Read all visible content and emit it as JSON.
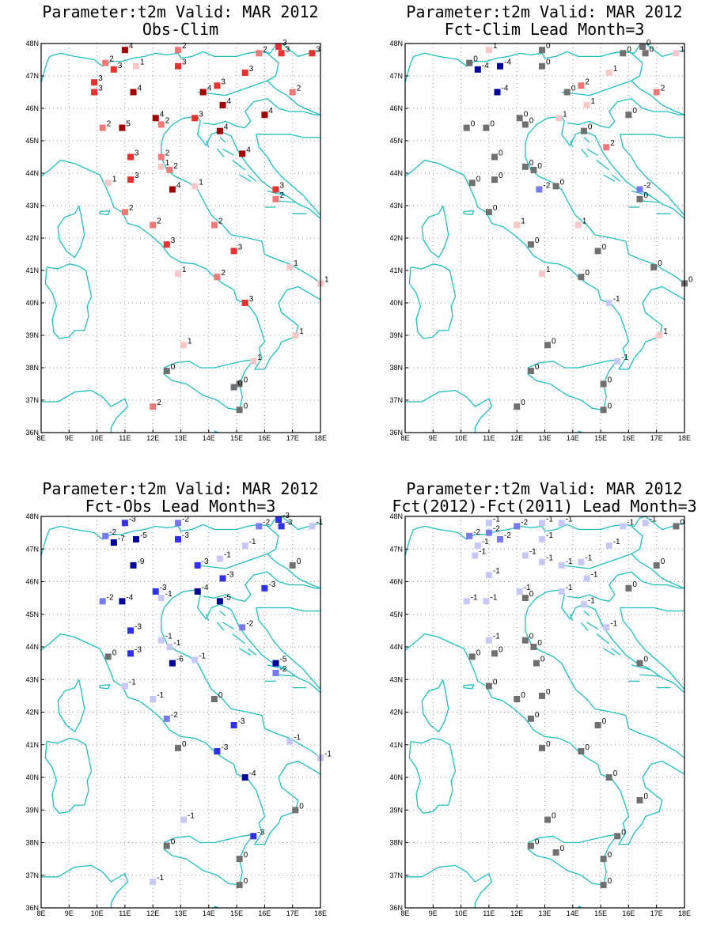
{
  "axes": {
    "lon_ticks": [
      "8E",
      "9E",
      "10E",
      "11E",
      "12E",
      "13E",
      "14E",
      "15E",
      "16E",
      "17E",
      "18E"
    ],
    "lat_ticks": [
      "48N",
      "47N",
      "46N",
      "45N",
      "44N",
      "43N",
      "42N",
      "41N",
      "40N",
      "39N",
      "38N",
      "37N",
      "36N"
    ],
    "lon_range": [
      8,
      18
    ],
    "lat_range": [
      36,
      48
    ]
  },
  "colors": {
    "coastline": "#22bdbd",
    "grid": "#9a9a9a",
    "pos1": "#f8c8c8",
    "pos2": "#f07878",
    "pos3": "#e83030",
    "pos4": "#a00000",
    "neg1": "#c8c8f8",
    "neg2": "#7878f0",
    "neg3": "#3030e8",
    "neg4": "#00009a",
    "zero": "#707070"
  },
  "panels": [
    {
      "title1": "Parameter:t2m Valid: MAR 2012",
      "title2": "Obs-Clim",
      "stations": [
        {
          "lon": 10.3,
          "lat": 47.4,
          "v": "2"
        },
        {
          "lon": 10.6,
          "lat": 47.2,
          "v": "3"
        },
        {
          "lon": 11.0,
          "lat": 47.8,
          "v": "4"
        },
        {
          "lon": 11.4,
          "lat": 47.3,
          "v": "1"
        },
        {
          "lon": 9.9,
          "lat": 46.8,
          "v": "3"
        },
        {
          "lon": 9.9,
          "lat": 46.5,
          "v": "3"
        },
        {
          "lon": 11.3,
          "lat": 46.5,
          "v": "4"
        },
        {
          "lon": 12.9,
          "lat": 47.8,
          "v": "2"
        },
        {
          "lon": 12.9,
          "lat": 47.3,
          "v": "3"
        },
        {
          "lon": 13.8,
          "lat": 46.5,
          "v": "4"
        },
        {
          "lon": 14.3,
          "lat": 46.7,
          "v": "3"
        },
        {
          "lon": 15.3,
          "lat": 47.1,
          "v": "3"
        },
        {
          "lon": 15.8,
          "lat": 47.7,
          "v": "2"
        },
        {
          "lon": 16.5,
          "lat": 47.9,
          "v": "3"
        },
        {
          "lon": 16.6,
          "lat": 47.7,
          "v": "3"
        },
        {
          "lon": 17.7,
          "lat": 47.7,
          "v": "3"
        },
        {
          "lon": 17.0,
          "lat": 46.5,
          "v": "2"
        },
        {
          "lon": 16.0,
          "lat": 45.8,
          "v": "4"
        },
        {
          "lon": 14.5,
          "lat": 46.1,
          "v": "4"
        },
        {
          "lon": 13.5,
          "lat": 45.7,
          "v": "3"
        },
        {
          "lon": 12.1,
          "lat": 45.7,
          "v": "4"
        },
        {
          "lon": 12.3,
          "lat": 45.5,
          "v": "2"
        },
        {
          "lon": 10.2,
          "lat": 45.4,
          "v": "2"
        },
        {
          "lon": 10.9,
          "lat": 45.4,
          "v": "5"
        },
        {
          "lon": 14.4,
          "lat": 45.3,
          "v": "4"
        },
        {
          "lon": 11.2,
          "lat": 44.5,
          "v": "3"
        },
        {
          "lon": 12.3,
          "lat": 44.5,
          "v": "2"
        },
        {
          "lon": 12.3,
          "lat": 44.2,
          "v": "1"
        },
        {
          "lon": 12.6,
          "lat": 44.1,
          "v": "2"
        },
        {
          "lon": 15.2,
          "lat": 44.6,
          "v": "4"
        },
        {
          "lon": 10.4,
          "lat": 43.7,
          "v": "1"
        },
        {
          "lon": 11.2,
          "lat": 43.8,
          "v": "3"
        },
        {
          "lon": 12.7,
          "lat": 43.5,
          "v": "4"
        },
        {
          "lon": 13.5,
          "lat": 43.6,
          "v": "1"
        },
        {
          "lon": 16.4,
          "lat": 43.5,
          "v": "3"
        },
        {
          "lon": 16.4,
          "lat": 43.2,
          "v": "2"
        },
        {
          "lon": 11.0,
          "lat": 42.8,
          "v": "2"
        },
        {
          "lon": 12.0,
          "lat": 42.4,
          "v": "2"
        },
        {
          "lon": 14.2,
          "lat": 42.4,
          "v": "2"
        },
        {
          "lon": 12.5,
          "lat": 41.8,
          "v": "3"
        },
        {
          "lon": 14.9,
          "lat": 41.6,
          "v": "3"
        },
        {
          "lon": 12.9,
          "lat": 40.9,
          "v": "1"
        },
        {
          "lon": 14.3,
          "lat": 40.8,
          "v": "2"
        },
        {
          "lon": 15.3,
          "lat": 40.0,
          "v": "3"
        },
        {
          "lon": 16.9,
          "lat": 41.1,
          "v": "1"
        },
        {
          "lon": 18.0,
          "lat": 40.6,
          "v": "1"
        },
        {
          "lon": 17.1,
          "lat": 39.0,
          "v": "1"
        },
        {
          "lon": 13.1,
          "lat": 38.7,
          "v": "1"
        },
        {
          "lon": 15.6,
          "lat": 38.2,
          "v": "1"
        },
        {
          "lon": 12.5,
          "lat": 37.9,
          "v": "0"
        },
        {
          "lon": 15.1,
          "lat": 37.5,
          "v": "0"
        },
        {
          "lon": 14.9,
          "lat": 37.4,
          "v": "0"
        },
        {
          "lon": 15.1,
          "lat": 36.7,
          "v": "0"
        },
        {
          "lon": 12.0,
          "lat": 36.8,
          "v": "2"
        }
      ]
    },
    {
      "title1": "Parameter:t2m Valid: MAR 2012",
      "title2": "Fct-Clim Lead Month=3",
      "stations": [
        {
          "lon": 10.3,
          "lat": 47.4,
          "v": "0"
        },
        {
          "lon": 10.6,
          "lat": 47.2,
          "v": "-4"
        },
        {
          "lon": 11.0,
          "lat": 47.8,
          "v": "1"
        },
        {
          "lon": 11.4,
          "lat": 47.3,
          "v": "-4"
        },
        {
          "lon": 11.3,
          "lat": 46.5,
          "v": "-4"
        },
        {
          "lon": 12.9,
          "lat": 47.8,
          "v": "0"
        },
        {
          "lon": 12.9,
          "lat": 47.3,
          "v": "0"
        },
        {
          "lon": 13.8,
          "lat": 46.5,
          "v": "0"
        },
        {
          "lon": 14.3,
          "lat": 46.7,
          "v": "2"
        },
        {
          "lon": 15.3,
          "lat": 47.1,
          "v": "1"
        },
        {
          "lon": 15.8,
          "lat": 47.7,
          "v": "0"
        },
        {
          "lon": 16.5,
          "lat": 47.9,
          "v": "0"
        },
        {
          "lon": 16.6,
          "lat": 47.7,
          "v": "0"
        },
        {
          "lon": 17.7,
          "lat": 47.7,
          "v": "1"
        },
        {
          "lon": 17.0,
          "lat": 46.5,
          "v": "2"
        },
        {
          "lon": 16.0,
          "lat": 45.8,
          "v": "0"
        },
        {
          "lon": 14.5,
          "lat": 46.1,
          "v": "1"
        },
        {
          "lon": 13.5,
          "lat": 45.7,
          "v": "1"
        },
        {
          "lon": 12.1,
          "lat": 45.7,
          "v": "0"
        },
        {
          "lon": 12.3,
          "lat": 45.5,
          "v": "0"
        },
        {
          "lon": 10.2,
          "lat": 45.4,
          "v": "0"
        },
        {
          "lon": 10.9,
          "lat": 45.4,
          "v": "0"
        },
        {
          "lon": 14.4,
          "lat": 45.3,
          "v": "0"
        },
        {
          "lon": 11.2,
          "lat": 44.5,
          "v": "0"
        },
        {
          "lon": 12.3,
          "lat": 44.2,
          "v": "0"
        },
        {
          "lon": 12.6,
          "lat": 44.1,
          "v": "0"
        },
        {
          "lon": 15.2,
          "lat": 44.8,
          "v": "2"
        },
        {
          "lon": 10.4,
          "lat": 43.7,
          "v": "0"
        },
        {
          "lon": 11.2,
          "lat": 43.8,
          "v": "0"
        },
        {
          "lon": 12.8,
          "lat": 43.5,
          "v": "-2"
        },
        {
          "lon": 13.4,
          "lat": 43.6,
          "v": "0"
        },
        {
          "lon": 16.4,
          "lat": 43.5,
          "v": "-2"
        },
        {
          "lon": 16.4,
          "lat": 43.2,
          "v": "0"
        },
        {
          "lon": 11.0,
          "lat": 42.8,
          "v": "0"
        },
        {
          "lon": 12.0,
          "lat": 42.4,
          "v": "1"
        },
        {
          "lon": 14.2,
          "lat": 42.4,
          "v": "1"
        },
        {
          "lon": 12.5,
          "lat": 41.8,
          "v": "0"
        },
        {
          "lon": 14.9,
          "lat": 41.6,
          "v": "0"
        },
        {
          "lon": 12.9,
          "lat": 40.9,
          "v": "1"
        },
        {
          "lon": 14.3,
          "lat": 40.8,
          "v": "0"
        },
        {
          "lon": 15.3,
          "lat": 40.0,
          "v": "-1"
        },
        {
          "lon": 16.9,
          "lat": 41.1,
          "v": "0"
        },
        {
          "lon": 18.0,
          "lat": 40.6,
          "v": "0"
        },
        {
          "lon": 17.1,
          "lat": 39.0,
          "v": "1"
        },
        {
          "lon": 13.1,
          "lat": 38.7,
          "v": "0"
        },
        {
          "lon": 15.6,
          "lat": 38.2,
          "v": "-1"
        },
        {
          "lon": 12.5,
          "lat": 37.9,
          "v": "0"
        },
        {
          "lon": 15.1,
          "lat": 37.5,
          "v": "0"
        },
        {
          "lon": 15.1,
          "lat": 36.7,
          "v": "0"
        },
        {
          "lon": 12.0,
          "lat": 36.8,
          "v": "0"
        }
      ]
    },
    {
      "title1": "Parameter:t2m Valid: MAR 2012",
      "title2": "Fct-Obs Lead Month=3",
      "stations": [
        {
          "lon": 10.3,
          "lat": 47.4,
          "v": "-2"
        },
        {
          "lon": 10.6,
          "lat": 47.2,
          "v": "-7"
        },
        {
          "lon": 11.0,
          "lat": 47.8,
          "v": "-3"
        },
        {
          "lon": 11.4,
          "lat": 47.3,
          "v": "-5"
        },
        {
          "lon": 11.3,
          "lat": 46.5,
          "v": "-9"
        },
        {
          "lon": 12.9,
          "lat": 47.8,
          "v": "-2"
        },
        {
          "lon": 12.9,
          "lat": 47.3,
          "v": "-3"
        },
        {
          "lon": 13.6,
          "lat": 46.5,
          "v": "-3"
        },
        {
          "lon": 14.4,
          "lat": 46.7,
          "v": "-1"
        },
        {
          "lon": 15.3,
          "lat": 47.1,
          "v": "-1"
        },
        {
          "lon": 15.8,
          "lat": 47.7,
          "v": "-2"
        },
        {
          "lon": 16.5,
          "lat": 47.9,
          "v": "-3"
        },
        {
          "lon": 16.6,
          "lat": 47.7,
          "v": "-3"
        },
        {
          "lon": 17.7,
          "lat": 47.7,
          "v": "-1"
        },
        {
          "lon": 17.0,
          "lat": 46.5,
          "v": "0"
        },
        {
          "lon": 16.0,
          "lat": 45.8,
          "v": "-3"
        },
        {
          "lon": 14.5,
          "lat": 46.1,
          "v": "-3"
        },
        {
          "lon": 13.6,
          "lat": 45.7,
          "v": "-4"
        },
        {
          "lon": 12.1,
          "lat": 45.7,
          "v": "-3"
        },
        {
          "lon": 12.3,
          "lat": 45.5,
          "v": "-1"
        },
        {
          "lon": 10.2,
          "lat": 45.4,
          "v": "-2"
        },
        {
          "lon": 10.9,
          "lat": 45.4,
          "v": "-4"
        },
        {
          "lon": 14.4,
          "lat": 45.4,
          "v": "-5"
        },
        {
          "lon": 11.2,
          "lat": 44.5,
          "v": "-3"
        },
        {
          "lon": 12.3,
          "lat": 44.2,
          "v": "-1"
        },
        {
          "lon": 12.6,
          "lat": 44.0,
          "v": "-1"
        },
        {
          "lon": 15.2,
          "lat": 44.6,
          "v": "-2"
        },
        {
          "lon": 10.4,
          "lat": 43.7,
          "v": "0"
        },
        {
          "lon": 11.2,
          "lat": 43.8,
          "v": "-3"
        },
        {
          "lon": 12.7,
          "lat": 43.5,
          "v": "-6"
        },
        {
          "lon": 13.5,
          "lat": 43.6,
          "v": "-1"
        },
        {
          "lon": 16.4,
          "lat": 43.5,
          "v": "-5"
        },
        {
          "lon": 16.4,
          "lat": 43.2,
          "v": "-2"
        },
        {
          "lon": 11.0,
          "lat": 42.8,
          "v": "-1"
        },
        {
          "lon": 12.0,
          "lat": 42.4,
          "v": "-1"
        },
        {
          "lon": 14.2,
          "lat": 42.4,
          "v": "0"
        },
        {
          "lon": 12.5,
          "lat": 41.8,
          "v": "-2"
        },
        {
          "lon": 14.9,
          "lat": 41.6,
          "v": "-3"
        },
        {
          "lon": 12.9,
          "lat": 40.9,
          "v": "0"
        },
        {
          "lon": 14.3,
          "lat": 40.8,
          "v": "-3"
        },
        {
          "lon": 15.3,
          "lat": 40.0,
          "v": "-4"
        },
        {
          "lon": 16.9,
          "lat": 41.1,
          "v": "-1"
        },
        {
          "lon": 18.0,
          "lat": 40.6,
          "v": "-1"
        },
        {
          "lon": 17.1,
          "lat": 39.0,
          "v": "0"
        },
        {
          "lon": 13.1,
          "lat": 38.7,
          "v": "-1"
        },
        {
          "lon": 15.6,
          "lat": 38.2,
          "v": "-3"
        },
        {
          "lon": 12.5,
          "lat": 37.9,
          "v": "0"
        },
        {
          "lon": 15.1,
          "lat": 37.5,
          "v": "0"
        },
        {
          "lon": 15.1,
          "lat": 36.7,
          "v": "0"
        },
        {
          "lon": 12.0,
          "lat": 36.8,
          "v": "-1"
        }
      ]
    },
    {
      "title1": "Parameter:t2m Valid: MAR 2012",
      "title2": "Fct(2012)-Fct(2011) Lead Month=3",
      "stations": [
        {
          "lon": 10.3,
          "lat": 47.4,
          "v": "-2"
        },
        {
          "lon": 10.6,
          "lat": 47.1,
          "v": "-1"
        },
        {
          "lon": 11.0,
          "lat": 47.8,
          "v": "-1"
        },
        {
          "lon": 11.0,
          "lat": 47.5,
          "v": "-2"
        },
        {
          "lon": 11.4,
          "lat": 47.3,
          "v": "-2"
        },
        {
          "lon": 10.5,
          "lat": 46.8,
          "v": "-1"
        },
        {
          "lon": 11.0,
          "lat": 46.2,
          "v": "-1"
        },
        {
          "lon": 12.0,
          "lat": 47.7,
          "v": "-2"
        },
        {
          "lon": 12.9,
          "lat": 47.8,
          "v": "-1"
        },
        {
          "lon": 13.6,
          "lat": 47.8,
          "v": "-1"
        },
        {
          "lon": 12.9,
          "lat": 47.3,
          "v": "-1"
        },
        {
          "lon": 12.3,
          "lat": 46.8,
          "v": "-1"
        },
        {
          "lon": 12.9,
          "lat": 46.6,
          "v": "-1"
        },
        {
          "lon": 13.6,
          "lat": 46.5,
          "v": "-1"
        },
        {
          "lon": 14.3,
          "lat": 46.6,
          "v": "-1"
        },
        {
          "lon": 15.3,
          "lat": 47.1,
          "v": "-1"
        },
        {
          "lon": 15.8,
          "lat": 47.7,
          "v": "-1"
        },
        {
          "lon": 16.6,
          "lat": 47.8,
          "v": "-1"
        },
        {
          "lon": 17.7,
          "lat": 47.7,
          "v": "0"
        },
        {
          "lon": 17.0,
          "lat": 46.5,
          "v": "0"
        },
        {
          "lon": 16.0,
          "lat": 45.8,
          "v": "0"
        },
        {
          "lon": 14.5,
          "lat": 46.1,
          "v": "-1"
        },
        {
          "lon": 13.6,
          "lat": 45.7,
          "v": "-1"
        },
        {
          "lon": 12.1,
          "lat": 45.7,
          "v": "-1"
        },
        {
          "lon": 12.3,
          "lat": 45.5,
          "v": "0"
        },
        {
          "lon": 10.2,
          "lat": 45.4,
          "v": "-1"
        },
        {
          "lon": 10.9,
          "lat": 45.4,
          "v": "-1"
        },
        {
          "lon": 14.4,
          "lat": 45.3,
          "v": "-1"
        },
        {
          "lon": 11.0,
          "lat": 44.2,
          "v": "-1"
        },
        {
          "lon": 12.3,
          "lat": 44.2,
          "v": "0"
        },
        {
          "lon": 12.6,
          "lat": 44.0,
          "v": "0"
        },
        {
          "lon": 15.2,
          "lat": 44.6,
          "v": "-1"
        },
        {
          "lon": 10.4,
          "lat": 43.7,
          "v": "0"
        },
        {
          "lon": 11.2,
          "lat": 43.8,
          "v": "0"
        },
        {
          "lon": 12.7,
          "lat": 43.5,
          "v": "0"
        },
        {
          "lon": 16.4,
          "lat": 43.5,
          "v": "0"
        },
        {
          "lon": 11.0,
          "lat": 42.8,
          "v": "0"
        },
        {
          "lon": 12.0,
          "lat": 42.4,
          "v": "0"
        },
        {
          "lon": 12.9,
          "lat": 42.5,
          "v": "0"
        },
        {
          "lon": 12.5,
          "lat": 41.8,
          "v": "0"
        },
        {
          "lon": 14.9,
          "lat": 41.6,
          "v": "0"
        },
        {
          "lon": 12.9,
          "lat": 40.9,
          "v": "0"
        },
        {
          "lon": 14.3,
          "lat": 40.8,
          "v": "0"
        },
        {
          "lon": 15.3,
          "lat": 40.0,
          "v": "0"
        },
        {
          "lon": 16.4,
          "lat": 39.3,
          "v": "0"
        },
        {
          "lon": 13.1,
          "lat": 38.7,
          "v": "0"
        },
        {
          "lon": 15.6,
          "lat": 38.2,
          "v": "0"
        },
        {
          "lon": 12.5,
          "lat": 37.9,
          "v": "0"
        },
        {
          "lon": 13.4,
          "lat": 37.7,
          "v": "0"
        },
        {
          "lon": 15.1,
          "lat": 37.5,
          "v": "0"
        },
        {
          "lon": 15.1,
          "lat": 36.7,
          "v": "0"
        }
      ]
    }
  ]
}
